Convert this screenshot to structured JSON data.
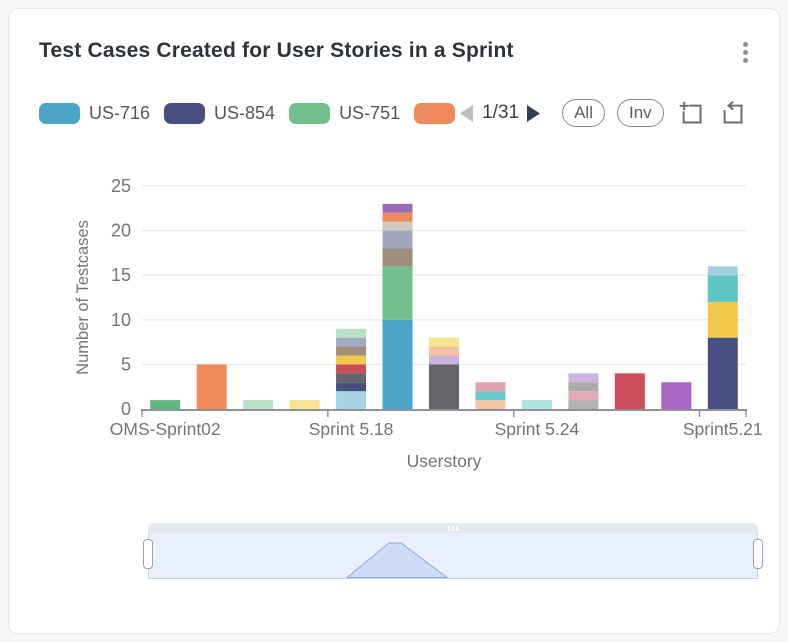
{
  "header": {
    "title": "Test Cases Created for User Stories in a Sprint"
  },
  "legend": {
    "items": [
      {
        "label": "US-716",
        "color": "#4aa5c6"
      },
      {
        "label": "US-854",
        "color": "#474f80"
      },
      {
        "label": "US-751",
        "color": "#72bf8d"
      },
      {
        "label": "",
        "color": "#ee8a5b"
      }
    ]
  },
  "pager": {
    "page_indicator": "1/31",
    "prev_arrow_color": "#b9bec5",
    "next_arrow_color": "#2e4156"
  },
  "toolbar": {
    "all_label": "All",
    "inv_label": "Inv"
  },
  "chart_data": {
    "type": "bar",
    "stacked": true,
    "title": "Test Cases Created for User Stories in a Sprint",
    "xlabel": "Userstory",
    "ylabel": "Number of Testcases",
    "ylim": [
      0,
      25
    ],
    "yticks": [
      0,
      5,
      10,
      15,
      20,
      25
    ],
    "grid": true,
    "slots": 13,
    "groups": [
      {
        "label": "OMS-Sprint02",
        "first_slot": 0
      },
      {
        "label": "Sprint 5.18",
        "first_slot": 4
      },
      {
        "label": "Sprint 5.24",
        "first_slot": 8
      },
      {
        "label": "Sprint5.21",
        "first_slot": 12
      }
    ],
    "tick_slots": [
      0,
      4,
      8,
      12,
      13
    ],
    "bars": [
      {
        "total": 1,
        "segments": [
          [
            1,
            "#5fb87f"
          ]
        ]
      },
      {
        "total": 5,
        "segments": [
          [
            5,
            "#ee8a5b"
          ]
        ]
      },
      {
        "total": 1,
        "segments": [
          [
            1,
            "#b9e1c5"
          ]
        ]
      },
      {
        "total": 1,
        "segments": [
          [
            1,
            "#f6e493"
          ]
        ]
      },
      {
        "total": 9,
        "segments": [
          [
            2,
            "#a6d4e4"
          ],
          [
            1,
            "#474f80"
          ],
          [
            1,
            "#63666b"
          ],
          [
            1,
            "#c94d5d"
          ],
          [
            1,
            "#f2c84b"
          ],
          [
            1,
            "#a08f7b"
          ],
          [
            1,
            "#a2a9c3"
          ],
          [
            1,
            "#b9dfc6"
          ]
        ]
      },
      {
        "total": 23,
        "segments": [
          [
            10,
            "#4aa5c6"
          ],
          [
            6,
            "#72bf8d"
          ],
          [
            2,
            "#9d8d79"
          ],
          [
            2,
            "#9fa6bf"
          ],
          [
            1,
            "#d2c9bf"
          ],
          [
            1,
            "#ee8a5b"
          ],
          [
            1,
            "#9c6bb5"
          ]
        ]
      },
      {
        "total": 8,
        "segments": [
          [
            5,
            "#656569"
          ],
          [
            1,
            "#cbb3dd"
          ],
          [
            1,
            "#f5c3a2"
          ],
          [
            1,
            "#f7e491"
          ]
        ]
      },
      {
        "total": 3,
        "segments": [
          [
            1,
            "#f5c3a2"
          ],
          [
            1,
            "#6cc8c8"
          ],
          [
            1,
            "#e3a2ad"
          ]
        ]
      },
      {
        "total": 1,
        "segments": [
          [
            1,
            "#aee3e3"
          ]
        ]
      },
      {
        "total": 4,
        "segments": [
          [
            1,
            "#b3b3b6"
          ],
          [
            1,
            "#e4aab8"
          ],
          [
            1,
            "#ababae"
          ],
          [
            1,
            "#ccb4de"
          ]
        ]
      },
      {
        "total": 4,
        "segments": [
          [
            4,
            "#cc4d5d"
          ]
        ]
      },
      {
        "total": 3,
        "segments": [
          [
            3,
            "#a966c4"
          ]
        ]
      },
      {
        "total": 16,
        "segments": [
          [
            8,
            "#474f80"
          ],
          [
            4,
            "#f2c84b"
          ],
          [
            3,
            "#5ec4c4"
          ],
          [
            1,
            "#a3cfe0"
          ]
        ]
      }
    ],
    "colors": {
      "grid": "#e8ecf5",
      "axis": "#8f9398",
      "axis_text": "#717579"
    }
  }
}
